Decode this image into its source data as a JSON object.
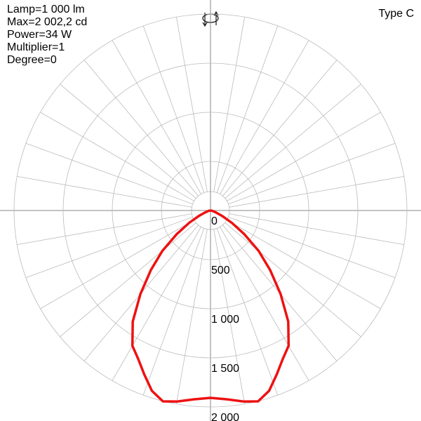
{
  "chart_data": {
    "type": "polar",
    "info": [
      "Lamp=1 000 lm",
      "Max=2 002,2 cd",
      "Power=34 W",
      "Multiplier=1",
      "Degree=0"
    ],
    "type_label": "Type C",
    "x": [
      0,
      5,
      10,
      14,
      18,
      22,
      26,
      30,
      35,
      40,
      45,
      50,
      55,
      60,
      65,
      70,
      80,
      90
    ],
    "series": [
      {
        "color": "#ee1111",
        "values": [
          1907,
          1930,
          1975,
          2002.2,
          1930,
          1800,
          1680,
          1590,
          1380,
          1110,
          860,
          640,
          420,
          250,
          130,
          60,
          20,
          0
        ]
      }
    ],
    "ylim": [
      0,
      2000
    ],
    "yticks": [
      0,
      500,
      {
        "value": 1000,
        "label": "1 000"
      },
      {
        "value": 1500,
        "label": "1 500"
      },
      {
        "value": 2000,
        "label": "2 000"
      }
    ],
    "grid": true
  }
}
